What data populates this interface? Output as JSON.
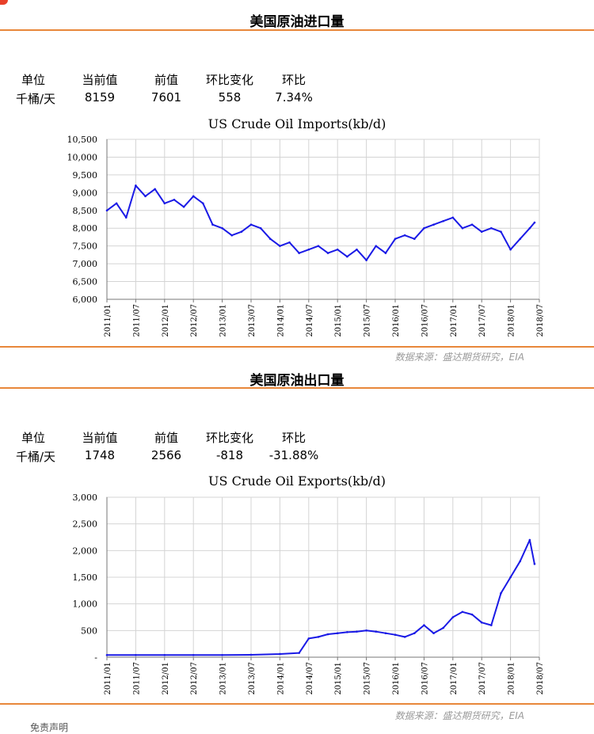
{
  "imports": {
    "section_title": "美国原油进口量",
    "table": {
      "headers": [
        "单位",
        "当前值",
        "前值",
        "环比变化",
        "环比"
      ],
      "values": [
        "千桶/天",
        "8159",
        "7601",
        "558",
        "7.34%"
      ]
    },
    "source": "数据来源：盛达期货研究，EIA"
  },
  "exports": {
    "section_title": "美国原油出口量",
    "table": {
      "headers": [
        "单位",
        "当前值",
        "前值",
        "环比变化",
        "环比"
      ],
      "values": [
        "千桶/天",
        "1748",
        "2566",
        "-818",
        "-31.88%"
      ]
    },
    "source": "数据来源：盛达期货研究，EIA"
  },
  "disclaimer": "免责声明",
  "chart_data": [
    {
      "type": "line",
      "title": "US Crude Oil Imports(kb/d)",
      "x_ticks": [
        "2011/01",
        "2011/07",
        "2012/01",
        "2012/07",
        "2013/01",
        "2013/07",
        "2014/01",
        "2014/07",
        "2015/01",
        "2015/07",
        "2016/01",
        "2016/07",
        "2017/01",
        "2017/07",
        "2018/01",
        "2018/07"
      ],
      "y_ticks": [
        "6,000",
        "6,500",
        "7,000",
        "7,500",
        "8,000",
        "8,500",
        "9,000",
        "9,500",
        "10,000",
        "10,500"
      ],
      "ylim": [
        6000,
        10500
      ],
      "xlim": [
        "2011/01",
        "2018/07"
      ],
      "grid": true,
      "color": "#1a1ae6",
      "series": [
        {
          "x": [
            "2011/01",
            "2011/03",
            "2011/05",
            "2011/07",
            "2011/09",
            "2011/11",
            "2012/01",
            "2012/03",
            "2012/05",
            "2012/07",
            "2012/09",
            "2012/11",
            "2013/01",
            "2013/03",
            "2013/05",
            "2013/07",
            "2013/09",
            "2013/11",
            "2014/01",
            "2014/03",
            "2014/05",
            "2014/07",
            "2014/09",
            "2014/11",
            "2015/01",
            "2015/03",
            "2015/05",
            "2015/07",
            "2015/09",
            "2015/11",
            "2016/01",
            "2016/03",
            "2016/05",
            "2016/07",
            "2016/09",
            "2016/11",
            "2017/01",
            "2017/03",
            "2017/05",
            "2017/07",
            "2017/09",
            "2017/11",
            "2018/01",
            "2018/03",
            "2018/05",
            "2018/06"
          ],
          "values": [
            8500,
            8700,
            8300,
            9200,
            8900,
            9100,
            8700,
            8800,
            8600,
            8900,
            8700,
            8100,
            8000,
            7800,
            7900,
            8100,
            8000,
            7700,
            7500,
            7600,
            7300,
            7400,
            7500,
            7300,
            7400,
            7200,
            7400,
            7100,
            7500,
            7300,
            7700,
            7800,
            7700,
            8000,
            8100,
            8200,
            8300,
            8000,
            8100,
            7900,
            8000,
            7900,
            7400,
            7700,
            8000,
            8159
          ]
        }
      ]
    },
    {
      "type": "line",
      "title": "US Crude Oil Exports(kb/d)",
      "x_ticks": [
        "2011/01",
        "2011/07",
        "2012/01",
        "2012/07",
        "2013/01",
        "2013/07",
        "2014/01",
        "2014/07",
        "2015/01",
        "2015/07",
        "2016/01",
        "2016/07",
        "2017/01",
        "2017/07",
        "2018/01",
        "2018/07"
      ],
      "y_ticks": [
        "-",
        "500",
        "1,000",
        "1,500",
        "2,000",
        "2,500",
        "3,000"
      ],
      "ylim": [
        0,
        3000
      ],
      "xlim": [
        "2011/01",
        "2018/07"
      ],
      "grid": true,
      "color": "#1a1ae6",
      "series": [
        {
          "x": [
            "2011/01",
            "2011/07",
            "2012/01",
            "2012/07",
            "2013/01",
            "2013/07",
            "2014/01",
            "2014/05",
            "2014/07",
            "2014/09",
            "2014/11",
            "2015/01",
            "2015/03",
            "2015/05",
            "2015/07",
            "2015/09",
            "2015/11",
            "2016/01",
            "2016/03",
            "2016/05",
            "2016/07",
            "2016/09",
            "2016/11",
            "2017/01",
            "2017/03",
            "2017/05",
            "2017/07",
            "2017/09",
            "2017/11",
            "2018/01",
            "2018/03",
            "2018/05",
            "2018/06"
          ],
          "values": [
            40,
            40,
            40,
            40,
            40,
            45,
            60,
            80,
            350,
            380,
            430,
            450,
            470,
            480,
            500,
            480,
            450,
            420,
            380,
            450,
            600,
            450,
            550,
            750,
            850,
            800,
            650,
            600,
            1200,
            1500,
            1800,
            2200,
            1748
          ]
        }
      ]
    }
  ]
}
